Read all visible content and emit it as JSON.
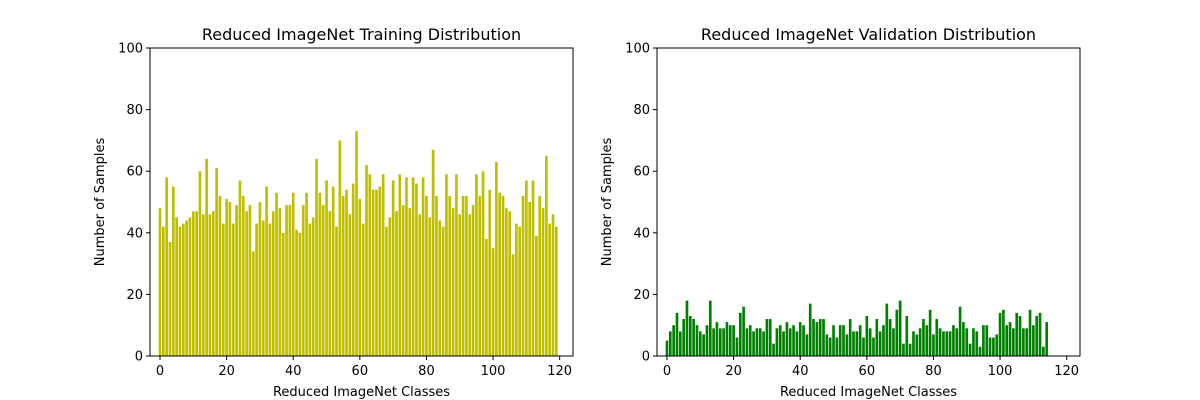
{
  "chart_data": [
    {
      "type": "bar",
      "title": "Reduced ImageNet Training Distribution",
      "xlabel": "Reduced ImageNet Classes",
      "ylabel": "Number of Samples",
      "xlim": [
        -3,
        124
      ],
      "ylim": [
        0,
        100
      ],
      "xticks": [
        0,
        20,
        40,
        60,
        80,
        100,
        120
      ],
      "yticks": [
        0,
        20,
        40,
        60,
        80,
        100
      ],
      "color": "#bfbf00",
      "x_start": 0,
      "values": [
        48,
        42,
        58,
        37,
        55,
        45,
        42,
        43,
        44,
        45,
        47,
        47,
        60,
        46,
        64,
        46,
        47,
        61,
        52,
        43,
        51,
        50,
        43,
        49,
        57,
        52,
        47,
        49,
        34,
        43,
        50,
        44,
        55,
        43,
        47,
        53,
        48,
        40,
        49,
        49,
        53,
        41,
        40,
        49,
        53,
        43,
        45,
        64,
        53,
        49,
        57,
        47,
        55,
        42,
        70,
        52,
        54,
        46,
        56,
        73,
        51,
        43,
        62,
        59,
        54,
        54,
        55,
        59,
        42,
        45,
        57,
        47,
        59,
        49,
        58,
        48,
        58,
        56,
        46,
        58,
        52,
        45,
        67,
        52,
        44,
        42,
        59,
        52,
        48,
        59,
        46,
        52,
        52,
        46,
        49,
        59,
        52,
        60,
        38,
        54,
        35,
        63,
        53,
        52,
        48,
        47,
        33,
        43,
        42,
        52,
        57,
        50,
        57,
        39,
        52,
        48,
        65,
        43,
        46,
        42
      ]
    },
    {
      "type": "bar",
      "title": "Reduced ImageNet Validation Distribution",
      "xlabel": "Reduced ImageNet Classes",
      "ylabel": "Number of Samples",
      "xlim": [
        -3,
        124
      ],
      "ylim": [
        0,
        100
      ],
      "xticks": [
        0,
        20,
        40,
        60,
        80,
        100,
        120
      ],
      "yticks": [
        0,
        20,
        40,
        60,
        80,
        100
      ],
      "color": "#008000",
      "x_start": 0,
      "values": [
        5,
        8,
        10,
        14,
        8,
        12,
        18,
        13,
        12,
        10,
        8,
        7,
        10,
        18,
        9,
        11,
        9,
        9,
        11,
        10,
        10,
        6,
        14,
        16,
        9,
        10,
        8,
        9,
        9,
        8,
        12,
        12,
        4,
        9,
        10,
        8,
        11,
        9,
        10,
        8,
        11,
        10,
        7,
        17,
        12,
        11,
        12,
        12,
        7,
        6,
        10,
        6,
        10,
        10,
        7,
        12,
        8,
        8,
        10,
        6,
        13,
        9,
        6,
        12,
        8,
        10,
        17,
        12,
        9,
        15,
        18,
        4,
        13,
        4,
        8,
        7,
        9,
        12,
        10,
        15,
        7,
        12,
        9,
        8,
        8,
        8,
        10,
        9,
        16,
        11,
        9,
        4,
        9,
        8,
        3,
        10,
        10,
        6,
        6,
        7,
        14,
        15,
        10,
        11,
        9,
        14,
        13,
        9,
        9,
        15,
        10,
        13,
        14,
        3,
        11
      ]
    }
  ]
}
